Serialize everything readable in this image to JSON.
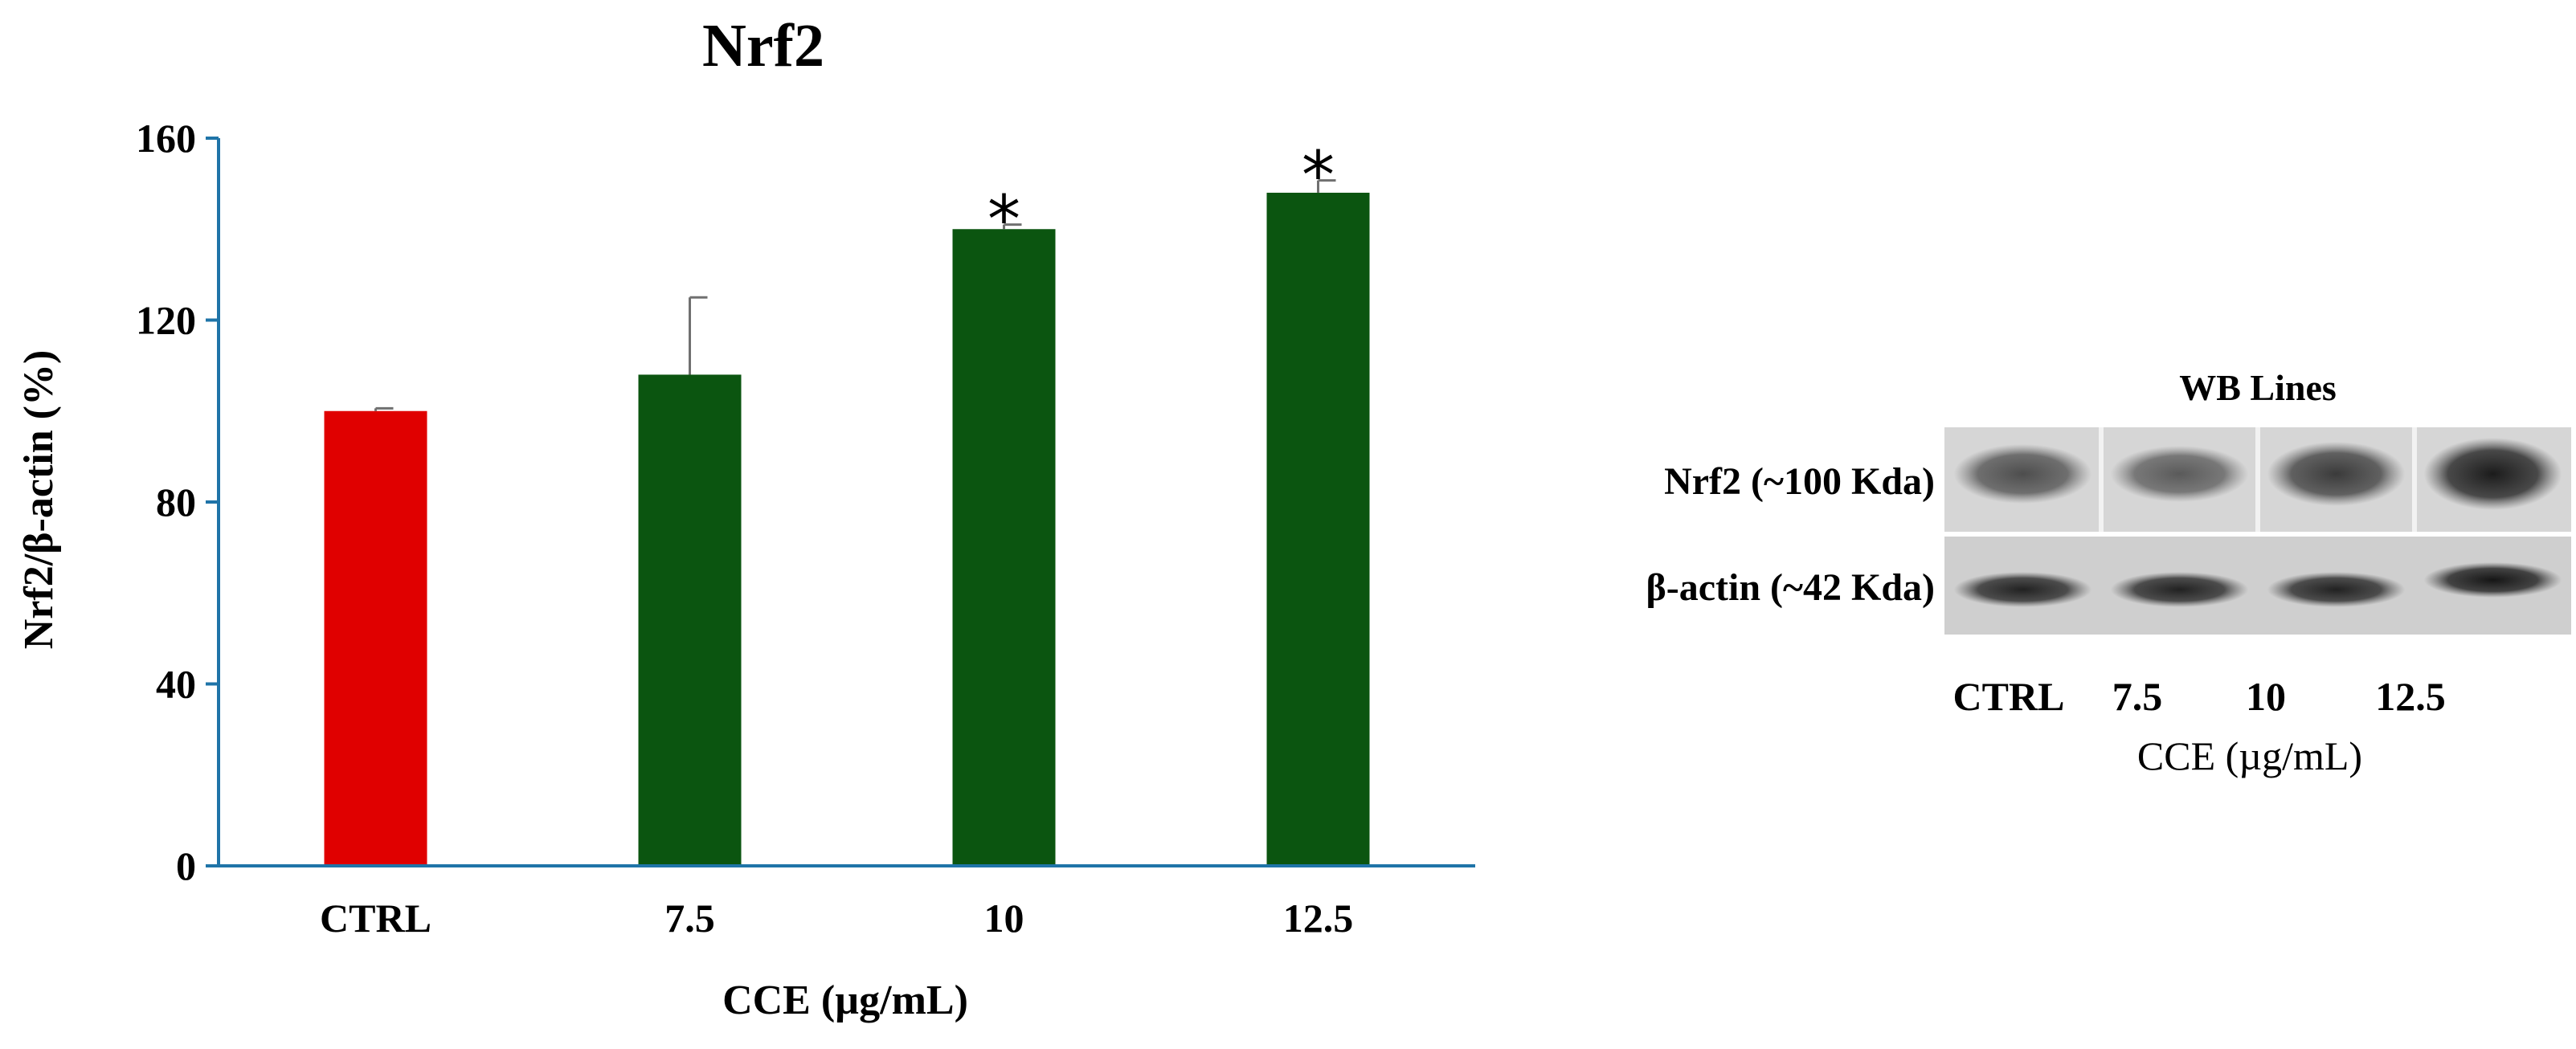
{
  "chart_data": {
    "type": "bar",
    "title": "Nrf2",
    "xlabel": "CCE (µg/mL)",
    "ylabel": "Nrf2/β-actin (%)",
    "ylim": [
      0,
      160
    ],
    "yticks": [
      0,
      40,
      80,
      120,
      160
    ],
    "grid": false,
    "categories": [
      "CTRL",
      "7.5",
      "10",
      "12.5"
    ],
    "values": [
      100,
      108,
      140,
      148
    ],
    "error": [
      0.6,
      17,
      1,
      2.7
    ],
    "significance": [
      "",
      "",
      "*",
      "*"
    ],
    "bar_colors": [
      "#e00000",
      "#0b5510",
      "#0b5510",
      "#0b5510"
    ],
    "axis_color": "#1f74a8"
  },
  "blot": {
    "title": "WB Lines",
    "rows": [
      {
        "label": "Nrf2 (~100 Kda)",
        "intensities": [
          0.55,
          0.45,
          0.7,
          0.95
        ]
      },
      {
        "label": "β-actin (~42 Kda)",
        "intensities": [
          0.9,
          0.9,
          0.9,
          1.0
        ]
      }
    ],
    "lanes": [
      "CTRL",
      "7.5",
      "10",
      "12.5"
    ],
    "xlabel": "CCE (µg/mL)"
  }
}
